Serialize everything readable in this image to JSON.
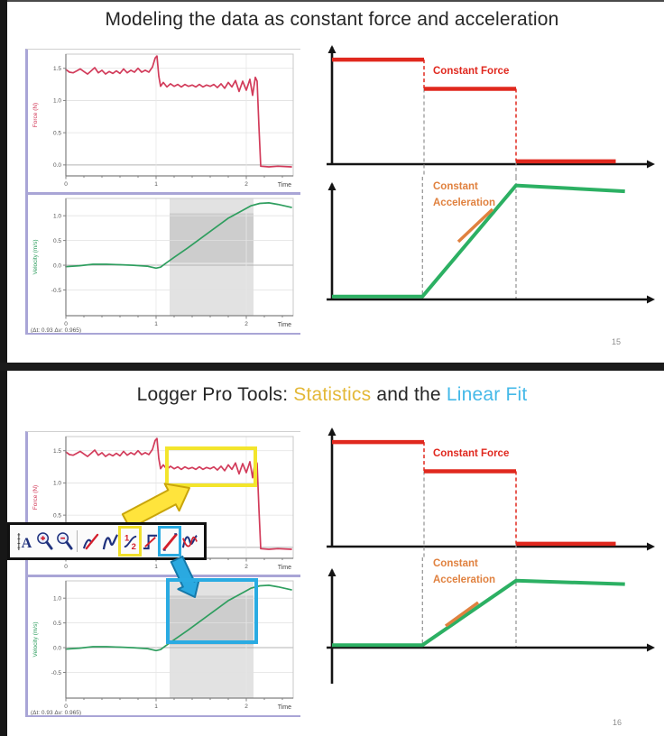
{
  "slide1": {
    "title": "Modeling the data as constant force and acceleration",
    "page_number": "15"
  },
  "slide2": {
    "title_segments": [
      {
        "text": "Logger Pro Tools: ",
        "color": "#262626"
      },
      {
        "text": "Statistics",
        "color": "#e3b838"
      },
      {
        "text": " and the ",
        "color": "#262626"
      },
      {
        "text": "Linear Fit",
        "color": "#45b9e8"
      }
    ],
    "page_number": "16",
    "toolbar": {
      "icons": [
        {
          "name": "autoscale"
        },
        {
          "name": "zoom-in"
        },
        {
          "name": "zoom-out"
        },
        {
          "name": "examine"
        },
        {
          "name": "tangent"
        },
        {
          "name": "statistics",
          "highlight": "yellow"
        },
        {
          "name": "integral"
        },
        {
          "name": "linear-fit",
          "highlight": "blue"
        },
        {
          "name": "curve-fit"
        }
      ]
    },
    "highlights": {
      "statistics_box_color": "#f3e52c",
      "linear_fit_box_color": "#2aabe2",
      "yellow_arrow_color": "#ffe43c",
      "yellow_arrow_stroke": "#c9a50a",
      "blue_arrow_color": "#2aa9e0",
      "blue_arrow_stroke": "#1479aa"
    }
  },
  "chart_data": [
    {
      "id": "force_lp",
      "type": "line",
      "title": "",
      "xlabel": "Time",
      "ylabel": "Force (N)",
      "x_ticks": [
        0,
        1,
        2
      ],
      "y_ticks": [
        0.0,
        0.5,
        1.0,
        1.5
      ],
      "xlim": [
        0,
        2.52
      ],
      "ylim": [
        -0.17,
        1.72
      ],
      "grid": true,
      "line_color": "#d23b5a",
      "points": [
        [
          0,
          1.48
        ],
        [
          0.04,
          1.44
        ],
        [
          0.08,
          1.43
        ],
        [
          0.12,
          1.46
        ],
        [
          0.16,
          1.49
        ],
        [
          0.2,
          1.45
        ],
        [
          0.24,
          1.41
        ],
        [
          0.28,
          1.46
        ],
        [
          0.32,
          1.51
        ],
        [
          0.36,
          1.43
        ],
        [
          0.4,
          1.47
        ],
        [
          0.44,
          1.41
        ],
        [
          0.48,
          1.45
        ],
        [
          0.52,
          1.42
        ],
        [
          0.56,
          1.46
        ],
        [
          0.6,
          1.42
        ],
        [
          0.64,
          1.49
        ],
        [
          0.68,
          1.43
        ],
        [
          0.72,
          1.47
        ],
        [
          0.76,
          1.44
        ],
        [
          0.8,
          1.5
        ],
        [
          0.84,
          1.44
        ],
        [
          0.88,
          1.47
        ],
        [
          0.92,
          1.44
        ],
        [
          0.96,
          1.52
        ],
        [
          0.99,
          1.66
        ],
        [
          1.01,
          1.69
        ],
        [
          1.03,
          1.38
        ],
        [
          1.05,
          1.22
        ],
        [
          1.08,
          1.28
        ],
        [
          1.12,
          1.21
        ],
        [
          1.16,
          1.26
        ],
        [
          1.2,
          1.22
        ],
        [
          1.24,
          1.25
        ],
        [
          1.28,
          1.21
        ],
        [
          1.32,
          1.25
        ],
        [
          1.36,
          1.22
        ],
        [
          1.4,
          1.24
        ],
        [
          1.44,
          1.21
        ],
        [
          1.48,
          1.25
        ],
        [
          1.52,
          1.21
        ],
        [
          1.56,
          1.24
        ],
        [
          1.6,
          1.22
        ],
        [
          1.64,
          1.25
        ],
        [
          1.68,
          1.2
        ],
        [
          1.72,
          1.26
        ],
        [
          1.76,
          1.19
        ],
        [
          1.8,
          1.28
        ],
        [
          1.84,
          1.21
        ],
        [
          1.88,
          1.31
        ],
        [
          1.92,
          1.14
        ],
        [
          1.96,
          1.3
        ],
        [
          2.0,
          1.16
        ],
        [
          2.04,
          1.33
        ],
        [
          2.07,
          1.08
        ],
        [
          2.1,
          1.36
        ],
        [
          2.12,
          1.3
        ],
        [
          2.14,
          0.6
        ],
        [
          2.16,
          -0.02
        ],
        [
          2.25,
          -0.03
        ],
        [
          2.35,
          -0.02
        ],
        [
          2.5,
          -0.03
        ]
      ]
    },
    {
      "id": "velocity_lp",
      "type": "line",
      "title": "",
      "xlabel": "Time",
      "ylabel": "Velocity (m/s)",
      "x_ticks": [
        0,
        1,
        2
      ],
      "y_ticks": [
        -0.5,
        0.0,
        0.5,
        1.0
      ],
      "xlim": [
        0,
        2.52
      ],
      "ylim": [
        -1.02,
        1.35
      ],
      "grid": true,
      "line_color": "#2f9e5f",
      "annotation": "(Δt: 0.93 Δv: 0.965)",
      "regions": [
        {
          "x0": 1.15,
          "x1": 2.08,
          "y0": -1.02,
          "y1": 1.35,
          "color": "#e2e2e2"
        },
        {
          "x0": 1.15,
          "x1": 2.08,
          "y0": 0.05,
          "y1": 1.05,
          "color": "#cdcdcd"
        }
      ],
      "points": [
        [
          0,
          -0.03
        ],
        [
          0.15,
          -0.01
        ],
        [
          0.3,
          0.02
        ],
        [
          0.45,
          0.02
        ],
        [
          0.6,
          0.01
        ],
        [
          0.75,
          0.0
        ],
        [
          0.9,
          -0.02
        ],
        [
          1.0,
          -0.06
        ],
        [
          1.05,
          -0.04
        ],
        [
          1.1,
          0.03
        ],
        [
          1.2,
          0.16
        ],
        [
          1.35,
          0.35
        ],
        [
          1.5,
          0.55
        ],
        [
          1.65,
          0.75
        ],
        [
          1.8,
          0.95
        ],
        [
          1.95,
          1.1
        ],
        [
          2.05,
          1.2
        ],
        [
          2.15,
          1.25
        ],
        [
          2.25,
          1.26
        ],
        [
          2.35,
          1.23
        ],
        [
          2.5,
          1.17
        ]
      ]
    },
    {
      "id": "force_ideal",
      "type": "step-diagram",
      "label": "Constant Force",
      "label_color": "#e0281e",
      "line_color": "#e0281e",
      "levels": [
        {
          "x0": 0.0,
          "x1": 0.3,
          "v": 0.9
        },
        {
          "x0": 0.3,
          "x1": 0.6,
          "v": 0.645
        },
        {
          "x0": 0.6,
          "x1": 0.925,
          "v": 0.012
        }
      ],
      "dashed_x": [
        0.3,
        0.6
      ]
    },
    {
      "id": "velocity_ideal",
      "type": "line-diagram",
      "label": "Constant Acceleration",
      "label_color": "#e0813f",
      "line_color": "#2cb063",
      "accent_color": "#e0813f",
      "points": [
        [
          0,
          0.01
        ],
        [
          0.295,
          0.01
        ],
        [
          0.6,
          0.95
        ],
        [
          0.955,
          0.9
        ]
      ],
      "dashed_x": [
        0.295,
        0.6
      ]
    }
  ]
}
